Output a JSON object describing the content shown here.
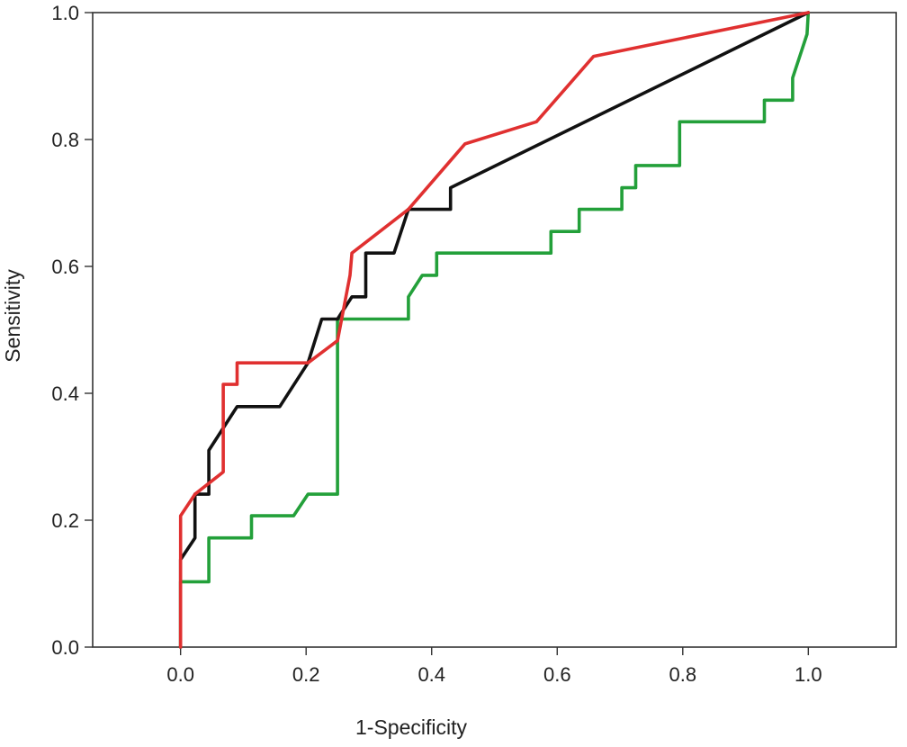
{
  "chart_data": {
    "type": "line",
    "title": "",
    "xlabel": "1-Specificity",
    "ylabel": "Sensitivity",
    "xlim": [
      -0.14,
      1.14
    ],
    "ylim": [
      0,
      1
    ],
    "grid": false,
    "legend": "none",
    "x_ticks": [
      "0.0",
      "0.2",
      "0.4",
      "0.6",
      "0.8",
      "1.0"
    ],
    "y_ticks": [
      "0.0",
      "0.2",
      "0.4",
      "0.6",
      "0.8",
      "1.0"
    ],
    "series": [
      {
        "color": "#23a03a",
        "points": [
          [
            0.0,
            0.0
          ],
          [
            0.0,
            0.103
          ],
          [
            0.045,
            0.103
          ],
          [
            0.045,
            0.172
          ],
          [
            0.113,
            0.172
          ],
          [
            0.113,
            0.207
          ],
          [
            0.18,
            0.207
          ],
          [
            0.203,
            0.241
          ],
          [
            0.25,
            0.241
          ],
          [
            0.25,
            0.517
          ],
          [
            0.363,
            0.517
          ],
          [
            0.363,
            0.552
          ],
          [
            0.385,
            0.586
          ],
          [
            0.408,
            0.586
          ],
          [
            0.408,
            0.621
          ],
          [
            0.59,
            0.621
          ],
          [
            0.59,
            0.655
          ],
          [
            0.635,
            0.655
          ],
          [
            0.635,
            0.69
          ],
          [
            0.703,
            0.69
          ],
          [
            0.703,
            0.724
          ],
          [
            0.725,
            0.724
          ],
          [
            0.725,
            0.759
          ],
          [
            0.795,
            0.759
          ],
          [
            0.795,
            0.828
          ],
          [
            0.93,
            0.828
          ],
          [
            0.93,
            0.862
          ],
          [
            0.975,
            0.862
          ],
          [
            0.975,
            0.897
          ],
          [
            0.998,
            0.966
          ],
          [
            1.0,
            1.0
          ]
        ]
      },
      {
        "color": "#111111",
        "points": [
          [
            0.0,
            0.0
          ],
          [
            0.0,
            0.138
          ],
          [
            0.023,
            0.172
          ],
          [
            0.023,
            0.241
          ],
          [
            0.045,
            0.241
          ],
          [
            0.045,
            0.31
          ],
          [
            0.09,
            0.379
          ],
          [
            0.158,
            0.379
          ],
          [
            0.203,
            0.448
          ],
          [
            0.225,
            0.517
          ],
          [
            0.25,
            0.517
          ],
          [
            0.273,
            0.552
          ],
          [
            0.295,
            0.552
          ],
          [
            0.295,
            0.621
          ],
          [
            0.34,
            0.621
          ],
          [
            0.363,
            0.69
          ],
          [
            0.43,
            0.69
          ],
          [
            0.43,
            0.724
          ],
          [
            1.0,
            1.0
          ]
        ]
      },
      {
        "color": "#e03030",
        "points": [
          [
            0.0,
            0.0
          ],
          [
            0.0,
            0.207
          ],
          [
            0.023,
            0.241
          ],
          [
            0.068,
            0.276
          ],
          [
            0.068,
            0.414
          ],
          [
            0.09,
            0.414
          ],
          [
            0.09,
            0.448
          ],
          [
            0.203,
            0.448
          ],
          [
            0.25,
            0.483
          ],
          [
            0.27,
            0.586
          ],
          [
            0.273,
            0.621
          ],
          [
            0.363,
            0.69
          ],
          [
            0.453,
            0.793
          ],
          [
            0.567,
            0.828
          ],
          [
            0.658,
            0.931
          ],
          [
            1.0,
            1.0
          ]
        ]
      }
    ]
  }
}
